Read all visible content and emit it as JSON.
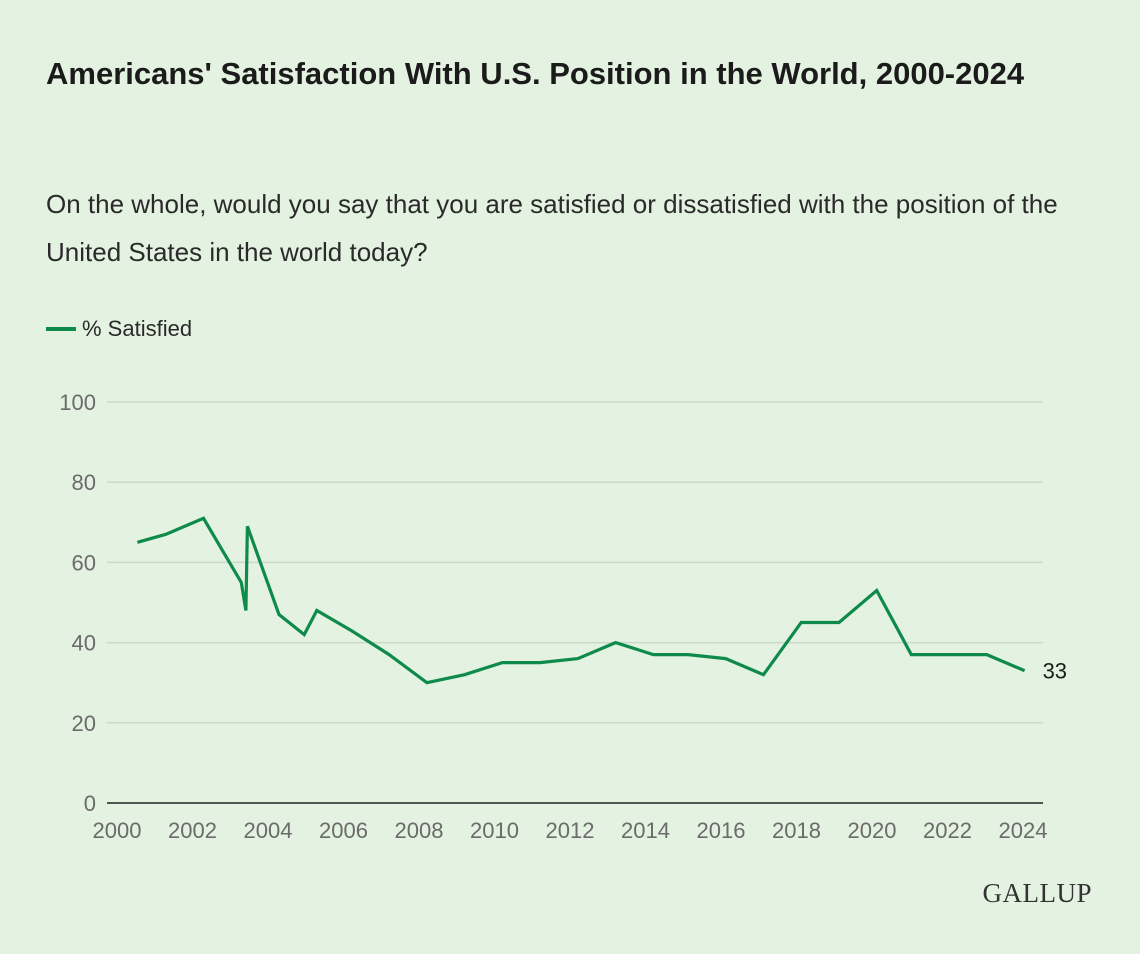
{
  "title": "Americans' Satisfaction With U.S. Position in the World, 2000-2024",
  "subtitle": "On the whole, would you say that you are satisfied or dissatisfied with the position of the United States in the world today?",
  "logo": "GALLUP",
  "colors": {
    "background": "#e4f2e1",
    "line": "#0e8a4a",
    "grid": "#cbd9c8"
  },
  "chart_data": {
    "type": "line",
    "title": "Americans' Satisfaction With U.S. Position in the World, 2000-2024",
    "xlabel": "",
    "ylabel": "",
    "xlim": [
      2000,
      2024
    ],
    "ylim": [
      0,
      100
    ],
    "x_ticks": [
      "2000",
      "2002",
      "2004",
      "2006",
      "2008",
      "2010",
      "2012",
      "2014",
      "2016",
      "2018",
      "2020",
      "2022",
      "2024"
    ],
    "y_ticks": [
      "0",
      "20",
      "40",
      "60",
      "80",
      "100"
    ],
    "grid": true,
    "legend": "top-left",
    "series": [
      {
        "name": "% Satisfied",
        "end_label": "33",
        "x": [
          "2000-07",
          "2001-04",
          "2002-04",
          "2003-04",
          "2003-05",
          "2003-05",
          "2004-04",
          "2004-12",
          "2005-04",
          "2006-03",
          "2007-03",
          "2008-03",
          "2009-03",
          "2010-03",
          "2011-03",
          "2012-03",
          "2013-03",
          "2014-03",
          "2015-02",
          "2016-02",
          "2017-02",
          "2018-02",
          "2019-02",
          "2020-02",
          "2021-01",
          "2022-02",
          "2023-01",
          "2024-01"
        ],
        "values": [
          65,
          67,
          71,
          55,
          48,
          69,
          47,
          42,
          48,
          43,
          37,
          30,
          32,
          35,
          35,
          36,
          40,
          37,
          37,
          36,
          32,
          45,
          45,
          53,
          37,
          37,
          37,
          33
        ]
      }
    ]
  }
}
